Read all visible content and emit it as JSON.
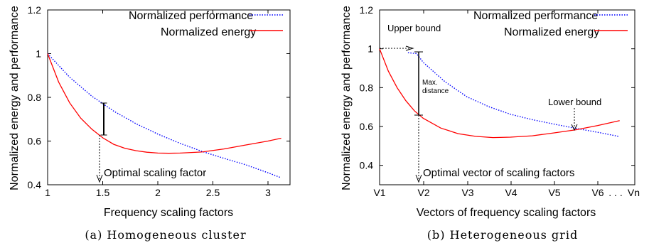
{
  "chart_data": [
    {
      "type": "line",
      "caption": "(a) Homogeneous cluster",
      "xlabel": "Frequency scaling factors",
      "ylabel": "Normalized energy and performance",
      "xlim": [
        1,
        3.2
      ],
      "ylim": [
        0.4,
        1.2
      ],
      "xticks": [
        "1",
        "1.5",
        "2",
        "2.5",
        "3"
      ],
      "yticks": [
        "0.4",
        "0.6",
        "0.8",
        "1",
        "1.2"
      ],
      "legend_position": "top-right",
      "series": [
        {
          "name": "Normalized performance",
          "style": "dotted",
          "color": "#0000ff",
          "x": [
            1.0,
            1.2,
            1.4,
            1.6,
            1.8,
            2.0,
            2.2,
            2.4,
            2.6,
            2.8,
            3.0,
            3.12
          ],
          "y": [
            1.0,
            0.892,
            0.806,
            0.737,
            0.68,
            0.632,
            0.59,
            0.553,
            0.521,
            0.491,
            0.455,
            0.432
          ]
        },
        {
          "name": "Normalized energy",
          "style": "solid",
          "color": "#ff0000",
          "x": [
            1.0,
            1.1,
            1.2,
            1.3,
            1.4,
            1.5,
            1.6,
            1.7,
            1.8,
            1.9,
            2.0,
            2.1,
            2.2,
            2.4,
            2.6,
            2.8,
            3.0,
            3.12
          ],
          "y": [
            1.0,
            0.87,
            0.775,
            0.705,
            0.655,
            0.615,
            0.585,
            0.567,
            0.556,
            0.549,
            0.545,
            0.544,
            0.545,
            0.55,
            0.564,
            0.582,
            0.6,
            0.613
          ]
        }
      ],
      "annotations": {
        "optimal_label": "Optimal scaling factor",
        "optimal_x": 1.47,
        "bar_top": 0.775,
        "bar_bottom": 0.625
      }
    },
    {
      "type": "line",
      "caption": "(b) Heterogeneous grid",
      "xlabel": "Vectors of frequency scaling factors",
      "ylabel": "Normalized energy and performance",
      "ylim": [
        0.3,
        1.2
      ],
      "xticks": [
        "V1",
        "V2",
        "V3",
        "V4",
        "V5",
        "V6",
        ". . .",
        "Vn"
      ],
      "yticks": [
        "0.4",
        "0.6",
        "0.8",
        "1",
        "1.2"
      ],
      "legend_position": "top-right",
      "series": [
        {
          "name": "Normalized performance",
          "style": "dotted",
          "color": "#0000ff",
          "x": [
            1.65,
            1.85,
            2.0,
            2.5,
            3.0,
            3.5,
            4.0,
            4.5,
            5.0,
            5.5,
            6.0,
            6.5
          ],
          "y": [
            0.98,
            0.975,
            0.93,
            0.83,
            0.753,
            0.702,
            0.663,
            0.635,
            0.612,
            0.59,
            0.57,
            0.548
          ]
        },
        {
          "name": "Normalized energy",
          "style": "solid",
          "color": "#ff0000",
          "x": [
            1.0,
            1.2,
            1.4,
            1.6,
            1.8,
            2.0,
            2.4,
            2.8,
            3.2,
            3.6,
            4.0,
            4.5,
            5.0,
            5.5,
            6.0,
            6.5
          ],
          "y": [
            1.0,
            0.885,
            0.8,
            0.733,
            0.68,
            0.642,
            0.592,
            0.563,
            0.549,
            0.543,
            0.545,
            0.552,
            0.567,
            0.583,
            0.605,
            0.63
          ]
        }
      ],
      "annotations": {
        "upper_bound_label": "Upper bound",
        "lower_bound_label": "Lower bound",
        "max_distance_label": [
          "Max.",
          "distance"
        ],
        "optimal_label": "Optimal vector of scaling factors",
        "upper_y": 1.0,
        "vector_x": 1.85,
        "bar_top": 0.98,
        "bar_bottom": 0.66,
        "lower_x": 5.55,
        "lower_y": 0.59
      }
    }
  ]
}
